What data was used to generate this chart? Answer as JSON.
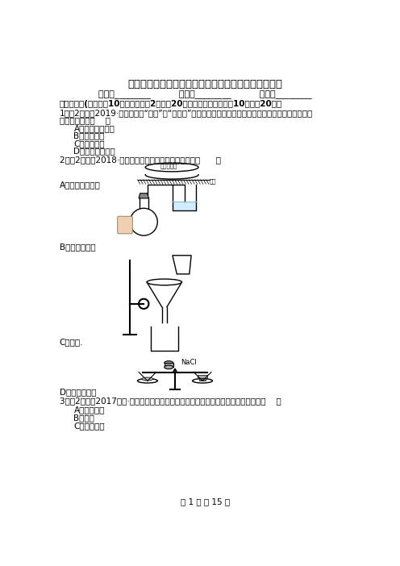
{
  "title": "大理白族自治州祥云县九年级上学期化学期中考试试卷",
  "info_line": "姓名：________          班级：________          成绩：________",
  "section1": "一、选择题(本大题入10小题，每小邘2分，入20分，每小题给出的（入10题；入20分）",
  "q1_line1": "1．（2分）（2019·遵义模拟）“澺戏”和“三孔台”是我国的国家级非物质文化遗产，下列民俗文化中蕴含",
  "q1_line2": "化学变化的是（    ）",
  "q1_options": [
    "A．澺戏面具制作",
    "B．高台舞狮",
    "C．古墓石雕",
    "D．佤家米酒酿造"
  ],
  "q2_text": "2．（2分）（2018·益阳）下列基本实验操作正确的是（      ）",
  "q2_A": "A．蕃发皿的放置",
  "q2_B": "B．检查气密性",
  "q2_C": "C．过滤.",
  "q2_D": "D．称量氯化钙",
  "q3_text": "3．（2分）（2017九上·扬州月考）空气是一种宝贵的自然资源，其中含量最多的是（    ）",
  "q3_options": [
    "A．二氧化碳",
    "B．氮气",
    "C．稀有气体"
  ],
  "footer": "第 1 页 八 15 页",
  "bg_color": "#ffffff",
  "text_color": "#000000"
}
